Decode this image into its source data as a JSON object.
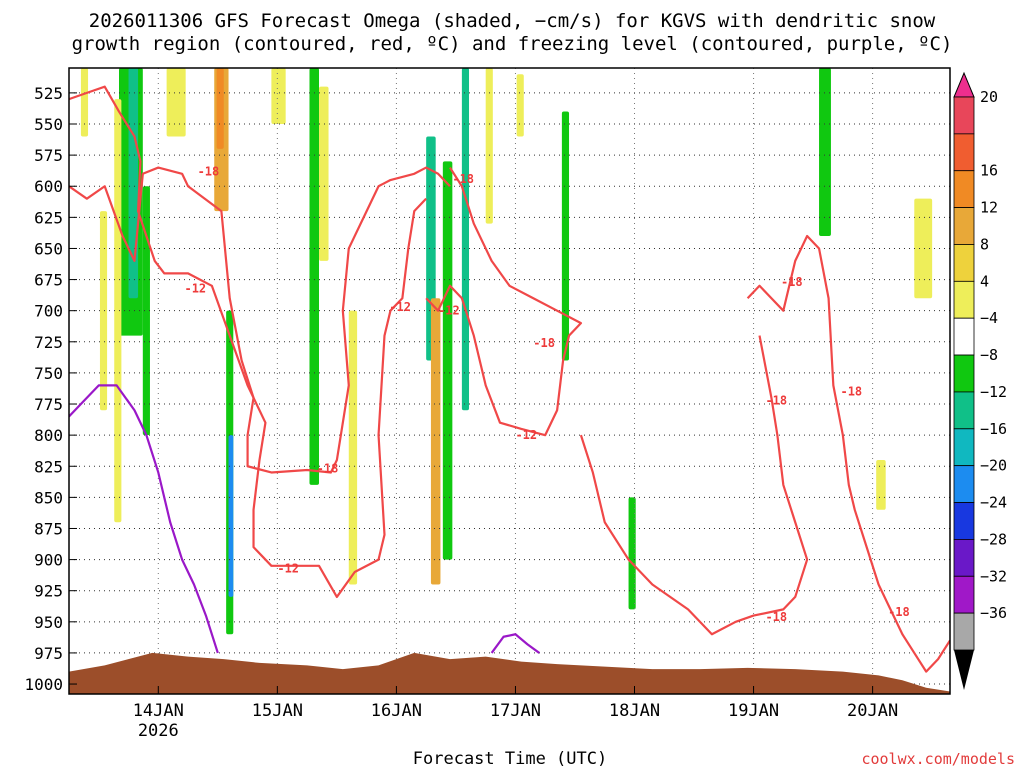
{
  "chart_data": {
    "type": "heatmap",
    "title_line1": "2026011306 GFS Forecast Omega (shaded, −cm/s) for KGVS with dendritic snow",
    "title_line2": "growth region (contoured, red, ºC) and freezing level (contoured, purple, ºC)",
    "xlabel": "Forecast Time (UTC)",
    "credit": "coolwx.com/models",
    "y_levels": [
      "525",
      "550",
      "575",
      "600",
      "625",
      "650",
      "675",
      "700",
      "725",
      "750",
      "775",
      "800",
      "825",
      "850",
      "875",
      "900",
      "925",
      "950",
      "975",
      "1000"
    ],
    "ylim": [
      505,
      1008
    ],
    "x_ticks": [
      {
        "label": "14JAN",
        "sub": "2026",
        "t": 0.75
      },
      {
        "label": "15JAN",
        "sub": "",
        "t": 1.75
      },
      {
        "label": "16JAN",
        "sub": "",
        "t": 2.75
      },
      {
        "label": "17JAN",
        "sub": "",
        "t": 3.75
      },
      {
        "label": "18JAN",
        "sub": "",
        "t": 4.75
      },
      {
        "label": "19JAN",
        "sub": "",
        "t": 5.75
      },
      {
        "label": "20JAN",
        "sub": "",
        "t": 6.75
      }
    ],
    "xlim": [
      0,
      7.4
    ],
    "colorbar": {
      "labels": [
        "20",
        "16",
        "12",
        "8",
        "4",
        "−4",
        "−8",
        "−12",
        "−16",
        "−20",
        "−24",
        "−28",
        "−32",
        "−36"
      ],
      "colors": [
        "#e8465a",
        "#f05d30",
        "#f08a24",
        "#e8a838",
        "#eed23c",
        "#eeee5a",
        "#ffffff",
        "#10c810",
        "#10c088",
        "#10b8c0",
        "#1c8cf0",
        "#1838e0",
        "#6a18c8",
        "#a018c8",
        "#a8a8a8"
      ],
      "top_color": "#ee2e8e",
      "bottom_color": "#000000"
    },
    "omega_patches": [
      {
        "t0": 0.1,
        "t1": 0.16,
        "p0": 505,
        "p1": 560,
        "color": "#eeee5a"
      },
      {
        "t0": 0.42,
        "t1": 0.62,
        "p0": 505,
        "p1": 720,
        "color": "#10c810"
      },
      {
        "t0": 0.5,
        "t1": 0.58,
        "p0": 505,
        "p1": 690,
        "color": "#10c088"
      },
      {
        "t0": 0.62,
        "t1": 0.68,
        "p0": 600,
        "p1": 800,
        "color": "#10c810"
      },
      {
        "t0": 0.38,
        "t1": 0.44,
        "p0": 530,
        "p1": 870,
        "color": "#eeee5a"
      },
      {
        "t0": 0.26,
        "t1": 0.32,
        "p0": 620,
        "p1": 780,
        "color": "#eeee5a"
      },
      {
        "t0": 0.82,
        "t1": 0.98,
        "p0": 505,
        "p1": 560,
        "color": "#eeee5a"
      },
      {
        "t0": 1.22,
        "t1": 1.34,
        "p0": 505,
        "p1": 620,
        "color": "#e8a838"
      },
      {
        "t0": 1.24,
        "t1": 1.3,
        "p0": 505,
        "p1": 570,
        "color": "#f08a24"
      },
      {
        "t0": 1.32,
        "t1": 1.38,
        "p0": 700,
        "p1": 960,
        "color": "#10c810"
      },
      {
        "t0": 1.34,
        "t1": 1.38,
        "p0": 800,
        "p1": 930,
        "color": "#1c8cf0"
      },
      {
        "t0": 1.7,
        "t1": 1.82,
        "p0": 505,
        "p1": 550,
        "color": "#eeee5a"
      },
      {
        "t0": 2.02,
        "t1": 2.1,
        "p0": 505,
        "p1": 840,
        "color": "#10c810"
      },
      {
        "t0": 2.1,
        "t1": 2.18,
        "p0": 520,
        "p1": 660,
        "color": "#eeee5a"
      },
      {
        "t0": 2.35,
        "t1": 2.42,
        "p0": 700,
        "p1": 920,
        "color": "#eeee5a"
      },
      {
        "t0": 3.0,
        "t1": 3.08,
        "p0": 560,
        "p1": 740,
        "color": "#10c088"
      },
      {
        "t0": 3.04,
        "t1": 3.12,
        "p0": 690,
        "p1": 920,
        "color": "#e8a838"
      },
      {
        "t0": 3.14,
        "t1": 3.22,
        "p0": 580,
        "p1": 900,
        "color": "#10c810"
      },
      {
        "t0": 3.3,
        "t1": 3.36,
        "p0": 505,
        "p1": 780,
        "color": "#10c088"
      },
      {
        "t0": 3.5,
        "t1": 3.56,
        "p0": 505,
        "p1": 630,
        "color": "#eeee5a"
      },
      {
        "t0": 3.76,
        "t1": 3.82,
        "p0": 510,
        "p1": 560,
        "color": "#eeee5a"
      },
      {
        "t0": 4.14,
        "t1": 4.2,
        "p0": 540,
        "p1": 740,
        "color": "#10c810"
      },
      {
        "t0": 4.7,
        "t1": 4.76,
        "p0": 850,
        "p1": 940,
        "color": "#10c810"
      },
      {
        "t0": 6.3,
        "t1": 6.4,
        "p0": 505,
        "p1": 640,
        "color": "#10c810"
      },
      {
        "t0": 7.1,
        "t1": 7.25,
        "p0": 610,
        "p1": 690,
        "color": "#eeee5a"
      },
      {
        "t0": 6.78,
        "t1": 6.86,
        "p0": 820,
        "p1": 860,
        "color": "#eeee5a"
      }
    ],
    "series": [
      {
        "name": "-18 C (left)",
        "color": "#f04848",
        "points": [
          [
            0,
            600
          ],
          [
            0.15,
            610
          ],
          [
            0.3,
            600
          ],
          [
            0.45,
            640
          ],
          [
            0.55,
            660
          ],
          [
            0.62,
            590
          ],
          [
            0.75,
            585
          ],
          [
            0.95,
            590
          ],
          [
            1.0,
            600
          ],
          [
            1.28,
            620
          ],
          [
            1.35,
            690
          ],
          [
            1.45,
            740
          ],
          [
            1.55,
            770
          ],
          [
            1.5,
            800
          ],
          [
            1.5,
            825
          ],
          [
            1.7,
            830
          ],
          [
            2.0,
            828
          ],
          [
            2.2,
            830
          ],
          [
            2.25,
            820
          ],
          [
            2.35,
            760
          ],
          [
            2.3,
            700
          ],
          [
            2.35,
            650
          ],
          [
            2.5,
            620
          ],
          [
            2.6,
            600
          ],
          [
            2.7,
            595
          ],
          [
            2.9,
            590
          ],
          [
            3.0,
            585
          ],
          [
            3.1,
            590
          ],
          [
            3.2,
            600
          ]
        ]
      },
      {
        "name": "-12 C (left)",
        "color": "#f04848",
        "points": [
          [
            0,
            530
          ],
          [
            0.15,
            525
          ],
          [
            0.3,
            520
          ],
          [
            0.42,
            540
          ],
          [
            0.55,
            560
          ],
          [
            0.6,
            580
          ],
          [
            0.58,
            620
          ],
          [
            0.72,
            660
          ],
          [
            0.8,
            670
          ],
          [
            1.0,
            670
          ],
          [
            1.2,
            680
          ],
          [
            1.35,
            720
          ],
          [
            1.5,
            760
          ],
          [
            1.65,
            790
          ],
          [
            1.6,
            820
          ],
          [
            1.55,
            860
          ],
          [
            1.55,
            890
          ],
          [
            1.7,
            905
          ],
          [
            1.9,
            905
          ],
          [
            2.1,
            905
          ],
          [
            2.25,
            930
          ],
          [
            2.4,
            910
          ],
          [
            2.6,
            900
          ],
          [
            2.65,
            880
          ],
          [
            2.6,
            800
          ],
          [
            2.65,
            720
          ],
          [
            2.7,
            700
          ],
          [
            2.8,
            690
          ],
          [
            2.85,
            650
          ],
          [
            2.9,
            620
          ],
          [
            3.0,
            610
          ]
        ]
      },
      {
        "name": "-12 C (mid)",
        "color": "#f04848",
        "points": [
          [
            3.0,
            690
          ],
          [
            3.1,
            700
          ],
          [
            3.2,
            680
          ],
          [
            3.3,
            690
          ],
          [
            3.4,
            720
          ],
          [
            3.5,
            760
          ],
          [
            3.62,
            790
          ],
          [
            3.8,
            795
          ],
          [
            4.0,
            800
          ],
          [
            4.1,
            780
          ],
          [
            4.15,
            740
          ],
          [
            4.2,
            720
          ],
          [
            4.3,
            710
          ],
          [
            4.1,
            700
          ],
          [
            3.9,
            690
          ],
          [
            3.7,
            680
          ],
          [
            3.55,
            660
          ],
          [
            3.4,
            630
          ],
          [
            3.3,
            600
          ],
          [
            3.2,
            585
          ]
        ]
      },
      {
        "name": "-12 C (right)",
        "color": "#f04848",
        "points": [
          [
            4.3,
            800
          ],
          [
            4.4,
            830
          ],
          [
            4.5,
            870
          ],
          [
            4.7,
            900
          ],
          [
            4.9,
            920
          ],
          [
            5.2,
            940
          ],
          [
            5.4,
            960
          ],
          [
            5.6,
            950
          ],
          [
            5.75,
            945
          ],
          [
            6.0,
            940
          ],
          [
            6.1,
            930
          ],
          [
            6.2,
            900
          ],
          [
            6.1,
            870
          ],
          [
            6.0,
            840
          ],
          [
            5.95,
            800
          ],
          [
            5.9,
            770
          ],
          [
            5.8,
            720
          ]
        ]
      },
      {
        "name": "-18 C (right)",
        "color": "#f04848",
        "points": [
          [
            5.7,
            690
          ],
          [
            5.8,
            680
          ],
          [
            5.9,
            690
          ],
          [
            6.0,
            700
          ],
          [
            6.05,
            680
          ],
          [
            6.1,
            660
          ],
          [
            6.2,
            640
          ],
          [
            6.3,
            650
          ],
          [
            6.38,
            690
          ],
          [
            6.42,
            760
          ],
          [
            6.5,
            800
          ],
          [
            6.55,
            840
          ],
          [
            6.6,
            860
          ],
          [
            6.7,
            890
          ],
          [
            6.8,
            920
          ],
          [
            6.9,
            940
          ],
          [
            7.0,
            960
          ],
          [
            7.1,
            975
          ],
          [
            7.2,
            990
          ],
          [
            7.3,
            980
          ],
          [
            7.4,
            965
          ]
        ]
      },
      {
        "name": "freezing level",
        "color": "#9a18c8",
        "points": [
          [
            0,
            785
          ],
          [
            0.1,
            775
          ],
          [
            0.25,
            760
          ],
          [
            0.4,
            760
          ],
          [
            0.55,
            780
          ],
          [
            0.65,
            800
          ],
          [
            0.75,
            830
          ],
          [
            0.85,
            870
          ],
          [
            0.95,
            900
          ],
          [
            1.05,
            920
          ],
          [
            1.15,
            945
          ],
          [
            1.25,
            975
          ]
        ]
      },
      {
        "name": "freezing level (17JAN)",
        "color": "#9a18c8",
        "points": [
          [
            3.55,
            975
          ],
          [
            3.65,
            962
          ],
          [
            3.75,
            960
          ],
          [
            3.85,
            968
          ],
          [
            3.95,
            975
          ]
        ]
      }
    ],
    "contour_labels": [
      {
        "text": "-18",
        "t": 1.08,
        "p": 588
      },
      {
        "text": "-12",
        "t": 0.97,
        "p": 682
      },
      {
        "text": "-18",
        "t": 2.08,
        "p": 827
      },
      {
        "text": "-12",
        "t": 1.75,
        "p": 907
      },
      {
        "text": "-12",
        "t": 2.69,
        "p": 697
      },
      {
        "text": "-12",
        "t": 3.1,
        "p": 700
      },
      {
        "text": "-18",
        "t": 3.22,
        "p": 594
      },
      {
        "text": "-18",
        "t": 3.9,
        "p": 726
      },
      {
        "text": "-12",
        "t": 3.75,
        "p": 800
      },
      {
        "text": "-18",
        "t": 5.85,
        "p": 772
      },
      {
        "text": "-18",
        "t": 5.85,
        "p": 946
      },
      {
        "text": "-18",
        "t": 5.98,
        "p": 677
      },
      {
        "text": "-18",
        "t": 6.48,
        "p": 765
      },
      {
        "text": "-18",
        "t": 6.88,
        "p": 942
      }
    ],
    "terrain": {
      "color": "#9c4e2a",
      "points": [
        [
          0,
          990
        ],
        [
          0.3,
          985
        ],
        [
          0.7,
          975
        ],
        [
          1.0,
          978
        ],
        [
          1.3,
          980
        ],
        [
          1.6,
          983
        ],
        [
          2.0,
          985
        ],
        [
          2.3,
          988
        ],
        [
          2.6,
          985
        ],
        [
          2.9,
          975
        ],
        [
          3.2,
          980
        ],
        [
          3.5,
          978
        ],
        [
          3.8,
          982
        ],
        [
          4.1,
          984
        ],
        [
          4.5,
          986
        ],
        [
          4.9,
          988
        ],
        [
          5.3,
          988
        ],
        [
          5.7,
          987
        ],
        [
          6.1,
          988
        ],
        [
          6.5,
          990
        ],
        [
          6.8,
          993
        ],
        [
          7.0,
          997
        ],
        [
          7.2,
          1003
        ],
        [
          7.4,
          1006
        ]
      ]
    }
  }
}
